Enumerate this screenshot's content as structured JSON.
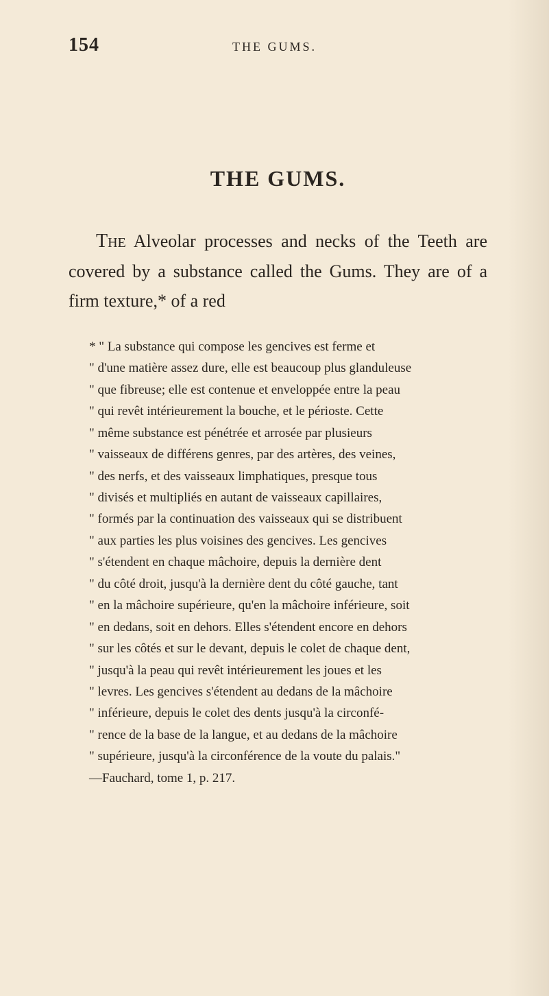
{
  "page_number": "154",
  "running_header": "THE GUMS.",
  "chapter_title": "THE GUMS.",
  "body_paragraph": {
    "first_word": "The",
    "rest": " Alveolar processes and necks of the Teeth are covered by a substance called the Gums. They are of a firm texture,* of a red"
  },
  "footnote": [
    "* \" La substance qui compose les gencives est ferme et",
    "\" d'une matière assez dure, elle est beaucoup plus glanduleuse",
    "\" que fibreuse; elle est contenue et enveloppée entre la peau",
    "\" qui revêt intérieurement la bouche, et le périoste. Cette",
    "\" même substance est pénétrée et arrosée par plusieurs",
    "\" vaisseaux de différens genres, par des artères, des veines,",
    "\" des nerfs, et des vaisseaux limphatiques, presque tous",
    "\" divisés et multipliés en autant de vaisseaux capillaires,",
    "\" formés par la continuation des vaisseaux qui se distribuent",
    "\" aux parties les plus voisines des gencives. Les gencives",
    "\" s'étendent en chaque mâchoire, depuis la dernière dent",
    "\" du côté droit, jusqu'à la dernière dent du côté gauche, tant",
    "\" en la mâchoire supérieure, qu'en la mâchoire inférieure, soit",
    "\" en dedans, soit en dehors. Elles s'étendent encore en dehors",
    "\" sur les côtés et sur le devant, depuis le colet de chaque dent,",
    "\" jusqu'à la peau qui revêt intérieurement les joues et les",
    "\" levres. Les gencives s'étendent au dedans de la mâchoire",
    "\" inférieure, depuis le colet des dents jusqu'à la circonfé-",
    "\" rence de la base de la langue, et au dedans de la mâchoire",
    "\" supérieure, jusqu'à la circonférence de la voute du palais.\"",
    "—Fauchard, tome 1, p. 217."
  ],
  "colors": {
    "background": "#f4ead8",
    "text": "#2a2520"
  }
}
